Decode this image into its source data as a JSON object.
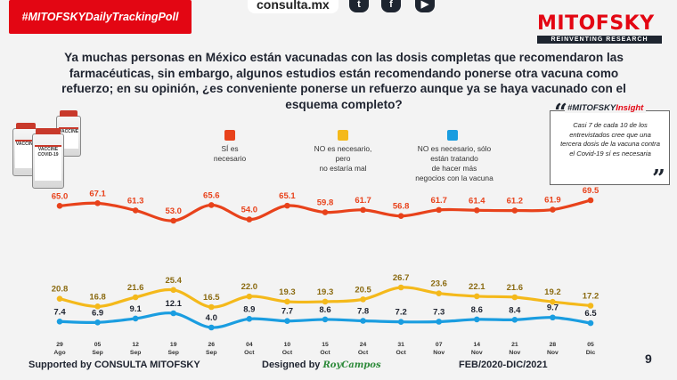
{
  "header": {
    "hashtag": "#MITOFSKYDailyTrackingPoll",
    "site": "consulta.mx",
    "social": [
      "twitter-icon",
      "facebook-icon",
      "youtube-icon"
    ],
    "logo_name": "MITOFSKY",
    "logo_tagline": "REINVENTING RESEARCH"
  },
  "colors": {
    "red": "#e8421b",
    "yellow": "#f4b91b",
    "blue": "#1a9de0",
    "brand": "#e30613"
  },
  "chart_data": {
    "type": "line",
    "title": "Ya muchas personas en México están vacunadas con las dosis completas que recomendaron las farmacéuticas, sin embargo, algunos estudios están recomendando ponerse otra vacuna como refuerzo; en su opinión, ¿es conveniente ponerse un refuerzo aunque ya se haya vacunado con el esquema completo?",
    "categories": [
      [
        "29",
        "Ago"
      ],
      [
        "05",
        "Sep"
      ],
      [
        "12",
        "Sep"
      ],
      [
        "19",
        "Sep"
      ],
      [
        "26",
        "Sep"
      ],
      [
        "04",
        "Oct"
      ],
      [
        "10",
        "Oct"
      ],
      [
        "15",
        "Oct"
      ],
      [
        "24",
        "Oct"
      ],
      [
        "31",
        "Oct"
      ],
      [
        "07",
        "Nov"
      ],
      [
        "14",
        "Nov"
      ],
      [
        "21",
        "Nov"
      ],
      [
        "28",
        "Nov"
      ],
      [
        "05",
        "Dic"
      ]
    ],
    "series": [
      {
        "name": "SÍ es\nnecesario",
        "color": "#e8421b",
        "values": [
          65.0,
          67.1,
          61.3,
          53.0,
          65.6,
          54.0,
          65.1,
          59.8,
          61.7,
          56.8,
          61.7,
          61.4,
          61.2,
          61.9,
          69.5
        ]
      },
      {
        "name": "NO es necesario,\npero\nno estaría mal",
        "color": "#f4b91b",
        "values": [
          20.8,
          16.8,
          21.6,
          25.4,
          16.5,
          22.0,
          19.3,
          19.3,
          20.5,
          26.7,
          23.6,
          22.1,
          21.6,
          19.2,
          17.2
        ]
      },
      {
        "name": "NO es necesario, sólo\nestán tratando\nde hacer más\nnegocios con la vacuna",
        "color": "#1a9de0",
        "values": [
          7.4,
          6.9,
          9.1,
          12.1,
          4.0,
          8.9,
          7.7,
          8.6,
          7.8,
          7.2,
          7.3,
          8.6,
          8.4,
          9.7,
          6.5
        ]
      }
    ],
    "ylim": [
      0,
      75
    ]
  },
  "insight": {
    "tag_prefix": "#MITOFSKY",
    "tag_suffix": "Insight",
    "text": "Casi 7 de cada 10 de los entrevistados cree que una tercera dosis de la vacuna contra el Covid-19 sí es necesaria"
  },
  "vaccine_labels": [
    "VACCINE",
    "VACCINE\nCOVID-19",
    "VACCINE"
  ],
  "footer": {
    "supported": "Supported by   CONSULTA   MITOFSKY",
    "designed": "Designed by",
    "designer": "RoyCampos",
    "period": "FEB/2020-DIC/2021",
    "page": "9"
  }
}
